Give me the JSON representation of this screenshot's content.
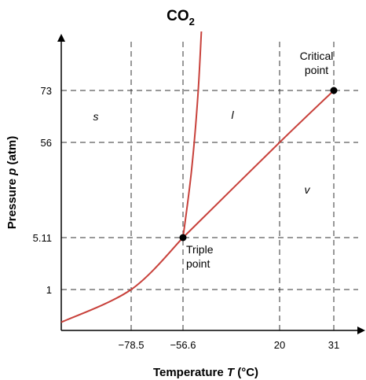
{
  "chart_data": {
    "type": "line",
    "title_main": "CO",
    "title_sub": "2",
    "xlabel_prefix": "Temperature ",
    "xlabel_var": "T",
    "xlabel_unit": " (°C)",
    "ylabel_prefix": "Pressure ",
    "ylabel_var": "p",
    "ylabel_unit": " (atm)",
    "x_ticks": [
      "−78.5",
      "−56.6",
      "20",
      "31"
    ],
    "y_ticks": [
      "73",
      "56",
      "5.11",
      "1"
    ],
    "grid": "dashed at tick values",
    "scale": "non-linear schematic axes",
    "series": [
      {
        "curve": "sublimation",
        "x": [
          -100,
          -78.5,
          -56.6
        ],
        "y": [
          0.2,
          1,
          5.11
        ]
      },
      {
        "curve": "melting",
        "x": [
          -56.6,
          -50,
          -45,
          -42
        ],
        "y": [
          5.11,
          40,
          70,
          100
        ]
      },
      {
        "curve": "vaporization",
        "x": [
          -56.6,
          20,
          31
        ],
        "y": [
          5.11,
          56,
          73
        ]
      }
    ],
    "points": [
      {
        "label_line1": "Triple",
        "label_line2": "point",
        "x": -56.6,
        "y": 5.11
      },
      {
        "label_line1": "Critical",
        "label_line2": "point",
        "x": 31,
        "y": 73
      }
    ],
    "region_labels": {
      "solid": "s",
      "liquid": "l",
      "vapor": "v"
    },
    "curve_color": "#c8413b",
    "grid_color": "#333333"
  }
}
